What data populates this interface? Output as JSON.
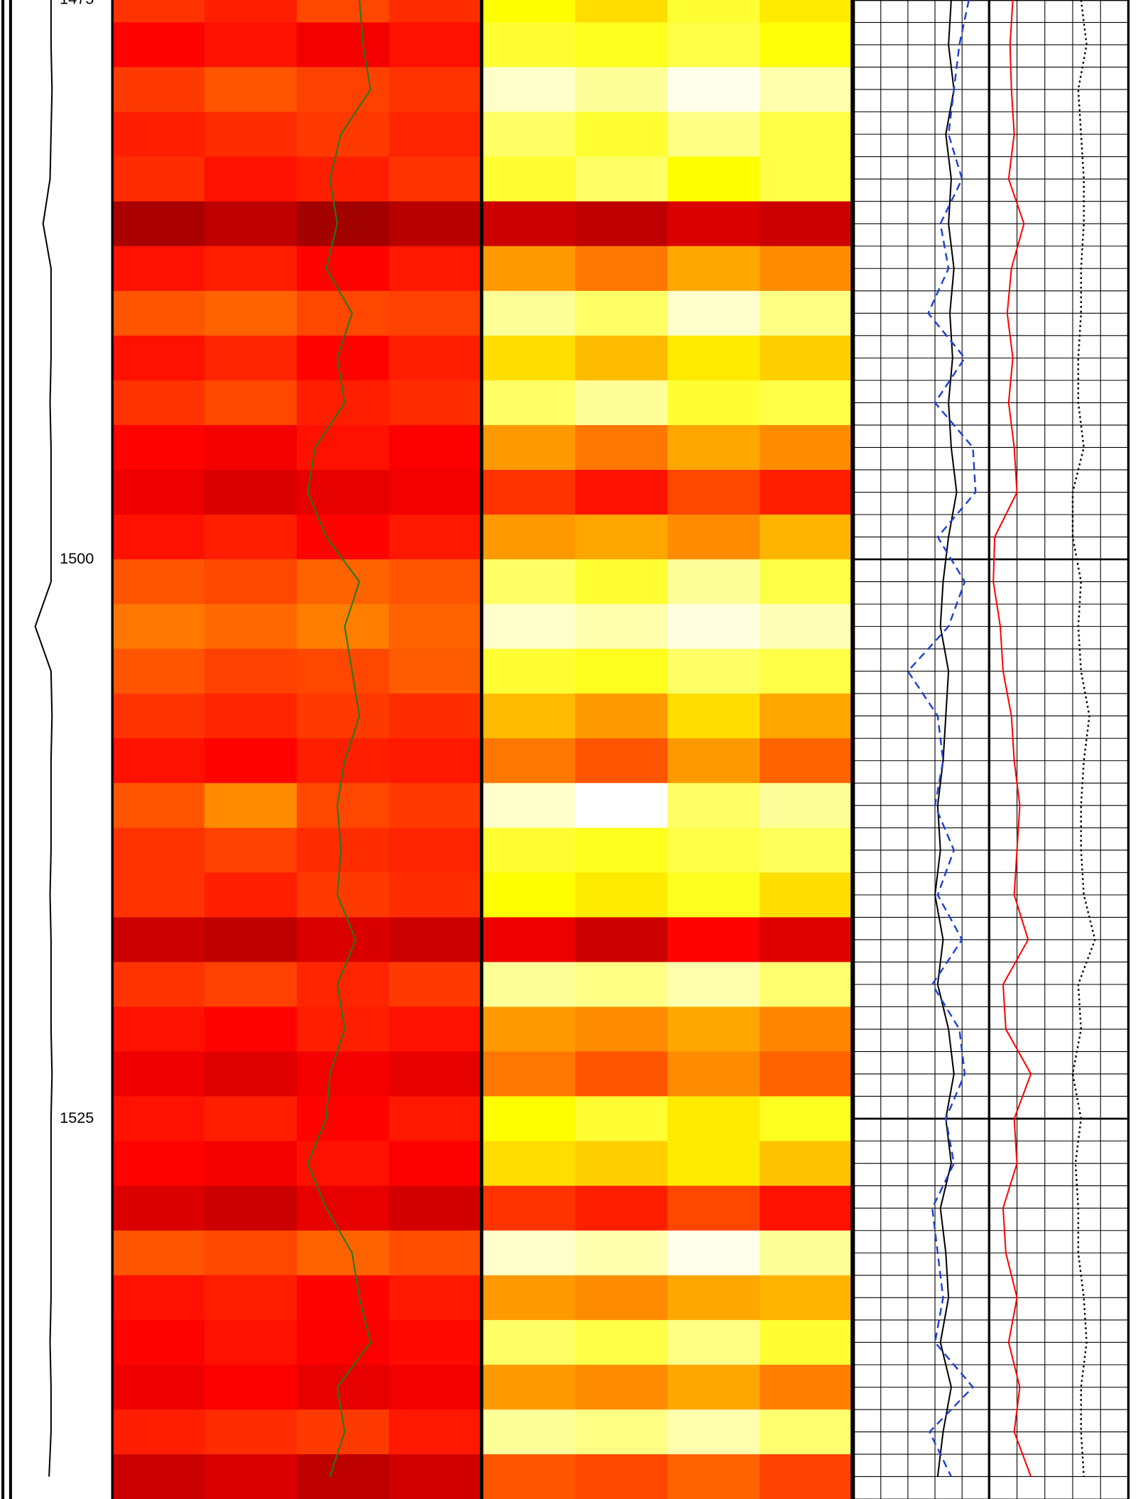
{
  "chart_data": {
    "type": "log",
    "ylim": [
      1475,
      1542
    ],
    "yticks": [
      1475,
      1500,
      1525
    ],
    "colormap": "hot",
    "grid": true,
    "depths": [
      1475,
      1477,
      1479,
      1481,
      1483,
      1485,
      1487,
      1489,
      1491,
      1493,
      1495,
      1497,
      1499,
      1501,
      1503,
      1505,
      1507,
      1509,
      1511,
      1513,
      1515,
      1517,
      1519,
      1521,
      1523,
      1525,
      1527,
      1529,
      1531,
      1533,
      1535,
      1537,
      1539,
      1541
    ],
    "images": [
      {
        "track": 1,
        "values": [
          [
            0.45,
            0.42,
            0.48,
            0.44
          ],
          [
            0.38,
            0.4,
            0.36,
            0.4
          ],
          [
            0.46,
            0.5,
            0.47,
            0.45
          ],
          [
            0.42,
            0.44,
            0.46,
            0.43
          ],
          [
            0.44,
            0.4,
            0.42,
            0.45
          ],
          [
            0.25,
            0.28,
            0.24,
            0.27
          ],
          [
            0.4,
            0.42,
            0.38,
            0.41
          ],
          [
            0.5,
            0.52,
            0.48,
            0.47
          ],
          [
            0.4,
            0.43,
            0.38,
            0.42
          ],
          [
            0.45,
            0.48,
            0.42,
            0.44
          ],
          [
            0.38,
            0.36,
            0.4,
            0.37
          ],
          [
            0.35,
            0.32,
            0.34,
            0.36
          ],
          [
            0.4,
            0.42,
            0.38,
            0.41
          ],
          [
            0.5,
            0.48,
            0.52,
            0.5
          ],
          [
            0.55,
            0.53,
            0.56,
            0.52
          ],
          [
            0.5,
            0.47,
            0.48,
            0.51
          ],
          [
            0.45,
            0.43,
            0.46,
            0.44
          ],
          [
            0.4,
            0.38,
            0.42,
            0.41
          ],
          [
            0.5,
            0.58,
            0.48,
            0.46
          ],
          [
            0.45,
            0.47,
            0.44,
            0.43
          ],
          [
            0.45,
            0.42,
            0.46,
            0.44
          ],
          [
            0.3,
            0.28,
            0.32,
            0.3
          ],
          [
            0.45,
            0.47,
            0.43,
            0.46
          ],
          [
            0.4,
            0.38,
            0.42,
            0.4
          ],
          [
            0.35,
            0.33,
            0.36,
            0.34
          ],
          [
            0.4,
            0.42,
            0.38,
            0.41
          ],
          [
            0.38,
            0.36,
            0.4,
            0.37
          ],
          [
            0.32,
            0.3,
            0.34,
            0.31
          ],
          [
            0.5,
            0.48,
            0.52,
            0.49
          ],
          [
            0.4,
            0.42,
            0.38,
            0.41
          ],
          [
            0.38,
            0.4,
            0.37,
            0.39
          ],
          [
            0.35,
            0.37,
            0.34,
            0.36
          ],
          [
            0.42,
            0.44,
            0.46,
            0.41
          ],
          [
            0.3,
            0.32,
            0.28,
            0.31
          ]
        ]
      },
      {
        "track": 2,
        "values": [
          [
            0.75,
            0.7,
            0.8,
            0.72
          ],
          [
            0.8,
            0.78,
            0.82,
            0.76
          ],
          [
            0.95,
            0.9,
            0.98,
            0.92
          ],
          [
            0.85,
            0.8,
            0.88,
            0.82
          ],
          [
            0.8,
            0.85,
            0.75,
            0.82
          ],
          [
            0.3,
            0.28,
            0.32,
            0.3
          ],
          [
            0.6,
            0.55,
            0.62,
            0.58
          ],
          [
            0.9,
            0.85,
            0.95,
            0.88
          ],
          [
            0.7,
            0.65,
            0.72,
            0.68
          ],
          [
            0.85,
            0.9,
            0.8,
            0.82
          ],
          [
            0.6,
            0.55,
            0.62,
            0.58
          ],
          [
            0.45,
            0.4,
            0.48,
            0.42
          ],
          [
            0.6,
            0.62,
            0.58,
            0.64
          ],
          [
            0.85,
            0.8,
            0.9,
            0.82
          ],
          [
            0.95,
            0.92,
            0.97,
            0.93
          ],
          [
            0.8,
            0.78,
            0.85,
            0.82
          ],
          [
            0.65,
            0.6,
            0.7,
            0.62
          ],
          [
            0.55,
            0.5,
            0.6,
            0.52
          ],
          [
            0.95,
            1.0,
            0.85,
            0.9
          ],
          [
            0.8,
            0.78,
            0.82,
            0.84
          ],
          [
            0.75,
            0.72,
            0.78,
            0.7
          ],
          [
            0.35,
            0.3,
            0.38,
            0.33
          ],
          [
            0.9,
            0.88,
            0.92,
            0.86
          ],
          [
            0.6,
            0.58,
            0.62,
            0.57
          ],
          [
            0.55,
            0.5,
            0.58,
            0.52
          ],
          [
            0.75,
            0.8,
            0.72,
            0.78
          ],
          [
            0.7,
            0.68,
            0.72,
            0.66
          ],
          [
            0.45,
            0.42,
            0.48,
            0.4
          ],
          [
            0.95,
            0.92,
            0.98,
            0.9
          ],
          [
            0.6,
            0.58,
            0.62,
            0.64
          ],
          [
            0.85,
            0.82,
            0.88,
            0.8
          ],
          [
            0.6,
            0.58,
            0.62,
            0.56
          ],
          [
            0.9,
            0.88,
            0.92,
            0.86
          ],
          [
            0.5,
            0.48,
            0.52,
            0.47
          ]
        ]
      }
    ],
    "curves": [
      {
        "track": 0,
        "color": "#000000",
        "style": "solid",
        "values": [
          38,
          38,
          39,
          38,
          37,
          30,
          38,
          38,
          38,
          37,
          38,
          38,
          38,
          38,
          22,
          38,
          39,
          38,
          38,
          38,
          37,
          38,
          38,
          38,
          39,
          38,
          38,
          38,
          38,
          38,
          37,
          38,
          38,
          36
        ]
      },
      {
        "track": 1,
        "color": "#1e7a1e",
        "style": "solid",
        "values": [
          67,
          68,
          70,
          62,
          59,
          61,
          58,
          65,
          61,
          63,
          55,
          53,
          58,
          67,
          63,
          65,
          67,
          63,
          61,
          62,
          61,
          66,
          61,
          63,
          59,
          58,
          53,
          58,
          65,
          67,
          70,
          61,
          63,
          59
        ]
      },
      {
        "track": 3,
        "color": "#000000",
        "style": "solid",
        "values": [
          72,
          70,
          74,
          68,
          72,
          70,
          74,
          71,
          73,
          70,
          72,
          76,
          70,
          66,
          64,
          70,
          68,
          66,
          62,
          64,
          60,
          66,
          62,
          70,
          74,
          68,
          72,
          64,
          68,
          70,
          64,
          72,
          66,
          62
        ]
      },
      {
        "track": 3,
        "color": "#1f3fd6",
        "style": "dashed",
        "values": [
          85,
          78,
          74,
          70,
          80,
          64,
          70,
          55,
          82,
          60,
          88,
          90,
          62,
          82,
          70,
          40,
          62,
          66,
          60,
          74,
          62,
          80,
          58,
          78,
          82,
          68,
          74,
          58,
          62,
          66,
          60,
          88,
          56,
          72
        ]
      },
      {
        "track": 4,
        "color": "#ff0000",
        "style": "solid",
        "values": [
          17,
          15,
          16,
          18,
          14,
          25,
          16,
          13,
          17,
          14,
          18,
          20,
          4,
          3,
          8,
          10,
          16,
          18,
          22,
          20,
          18,
          28,
          10,
          12,
          30,
          18,
          20,
          10,
          12,
          20,
          14,
          22,
          18,
          30
        ]
      },
      {
        "track": 4,
        "color": "#000000",
        "style": "dotted",
        "values": [
          66,
          70,
          64,
          66,
          68,
          68,
          66,
          66,
          64,
          64,
          68,
          60,
          60,
          66,
          64,
          66,
          72,
          68,
          66,
          66,
          68,
          76,
          64,
          66,
          60,
          66,
          62,
          64,
          64,
          68,
          70,
          66,
          66,
          68
        ]
      }
    ]
  }
}
